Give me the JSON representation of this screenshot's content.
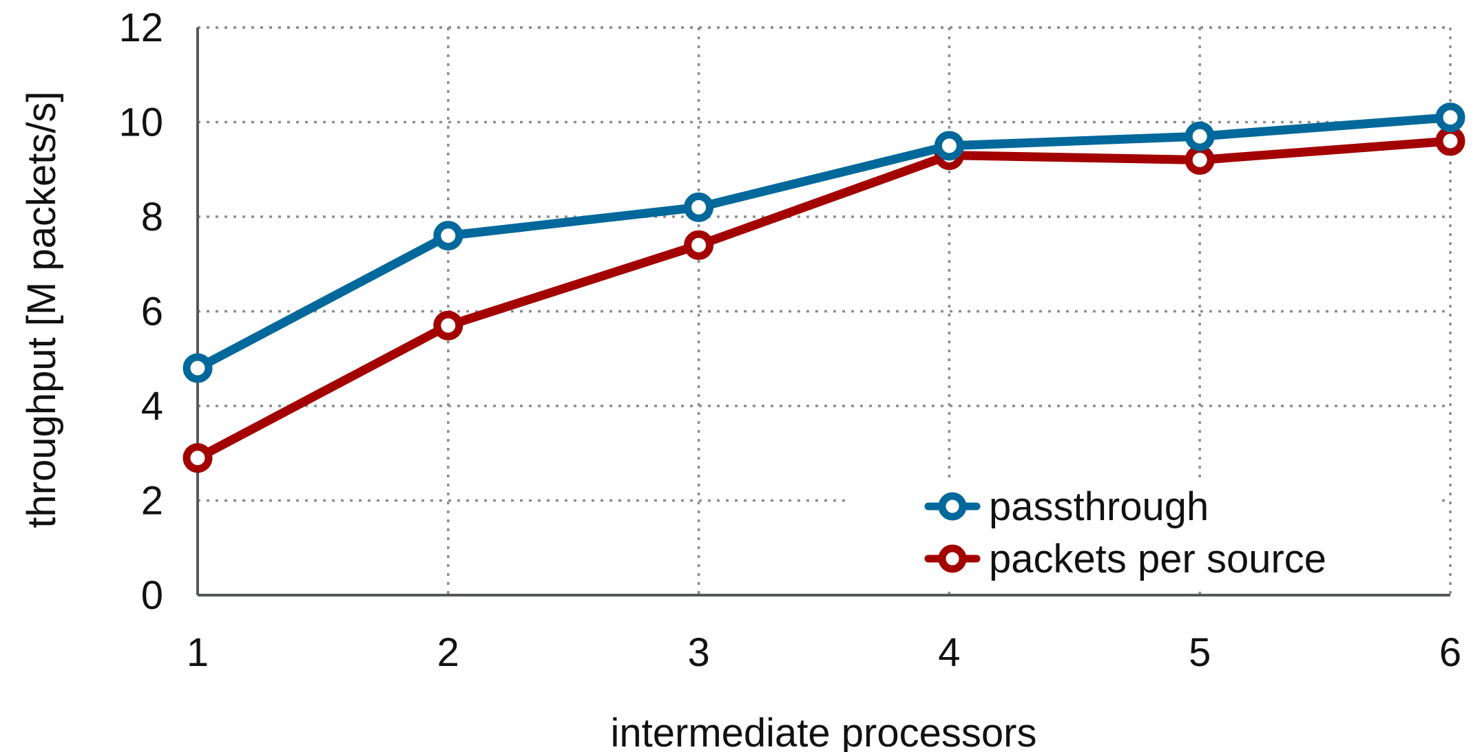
{
  "chart_data": {
    "type": "line",
    "title": "",
    "xlabel": "intermediate processors",
    "ylabel": "throughput [M packets/s]",
    "x": [
      1,
      2,
      3,
      4,
      5,
      6
    ],
    "x_ticks": [
      "1",
      "2",
      "3",
      "4",
      "5",
      "6"
    ],
    "xlim": [
      1,
      6
    ],
    "ylim": [
      0,
      12
    ],
    "y_ticks": [
      "0",
      "2",
      "4",
      "6",
      "8",
      "10",
      "12"
    ],
    "grid": true,
    "legend_position": "bottom-right",
    "series": [
      {
        "name": "passthrough",
        "color": "#00689a",
        "marker": "circle-open",
        "values": [
          4.8,
          7.6,
          8.2,
          9.5,
          9.7,
          10.1
        ]
      },
      {
        "name": "packets per source",
        "color": "#a30000",
        "marker": "circle-open",
        "values": [
          2.9,
          5.7,
          7.4,
          9.3,
          9.2,
          9.6
        ]
      }
    ]
  }
}
